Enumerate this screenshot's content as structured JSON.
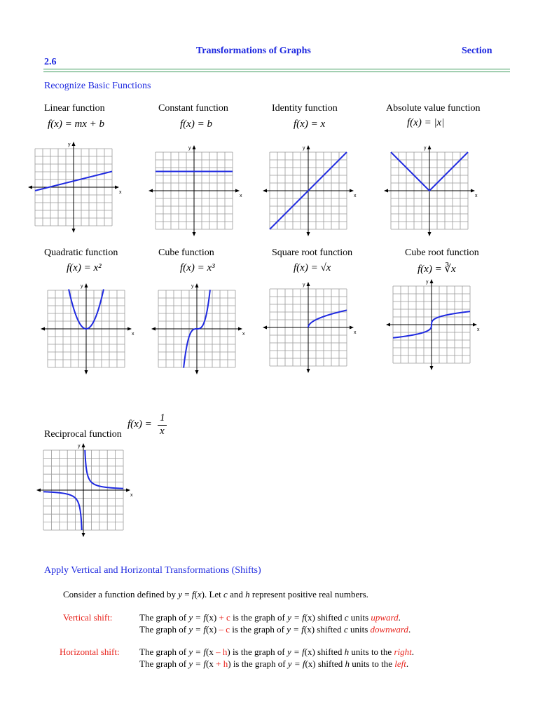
{
  "header": {
    "title": "Transformations of Graphs",
    "section_label": "Section",
    "section_number": "2.6"
  },
  "basic_heading": "Recognize Basic Functions",
  "functions": [
    {
      "name": "Linear function",
      "formula": "f(x) = mx + b"
    },
    {
      "name": "Constant function",
      "formula": "f(x) = b"
    },
    {
      "name": "Identity function",
      "formula": "f(x) = x"
    },
    {
      "name": "Absolute value function",
      "formula": "f(x) = |x|"
    },
    {
      "name": "Quadratic function",
      "formula": "f(x) = x²"
    },
    {
      "name": "Cube function",
      "formula": "f(x) = x³"
    },
    {
      "name": "Square root function",
      "formula": "f(x) = √x"
    },
    {
      "name": "Cube root function",
      "formula": "f(x) = ∛x"
    },
    {
      "name": "Reciprocal function",
      "formula_lhs": "f(x) =",
      "formula_num": "1",
      "formula_den": "x"
    }
  ],
  "axis_labels": {
    "x": "x",
    "y": "y"
  },
  "shifts_heading": "Apply Vertical and Horizontal Transformations (Shifts)",
  "intro": {
    "a": "Consider a function defined by ",
    "b": "y",
    "c": " = ",
    "d": "f",
    "e": "(",
    "f": "x",
    "g": "). Let ",
    "h": "c",
    "i": " and ",
    "j": "h",
    "k": "  represent positive real numbers."
  },
  "vertical": {
    "label": "Vertical shift:",
    "l1": {
      "a": "The graph of ",
      "b": "y = f",
      "c": "(x) ",
      "d": "+ c",
      "e": " is the graph of ",
      "f": "y = f",
      "g": "(x) shifted ",
      "h": "c",
      "i": " units ",
      "j": "upward",
      "k": "."
    },
    "l2": {
      "a": "The graph of ",
      "b": "y = f",
      "c": "(x) ",
      "d": "– c",
      "e": " is the graph of ",
      "f": "y = f",
      "g": "(x) shifted ",
      "h": "c",
      "i": " units ",
      "j": "downward",
      "k": "."
    }
  },
  "horizontal": {
    "label": "Horizontal shift:",
    "l1": {
      "a": "The graph of ",
      "b": "y = f",
      "c": "(x ",
      "d": "– h",
      "e": ") is the graph of ",
      "f": "y = f",
      "g": "(x) shifted ",
      "h": "h",
      "i": " units to the ",
      "j": "right",
      "k": "."
    },
    "l2": {
      "a": "The graph of ",
      "b": "y = f",
      "c": "(x ",
      "d": "+ h",
      "e": ") is the graph of ",
      "f": "y = f",
      "g": "(x) shifted ",
      "h": "h",
      "i": " units to the ",
      "j": "left",
      "k": "."
    }
  },
  "colors": {
    "curve": "#1f2ae0",
    "heading": "#1f2ae0",
    "accent_red": "#e8231c",
    "rule": "#3a9a5a"
  }
}
